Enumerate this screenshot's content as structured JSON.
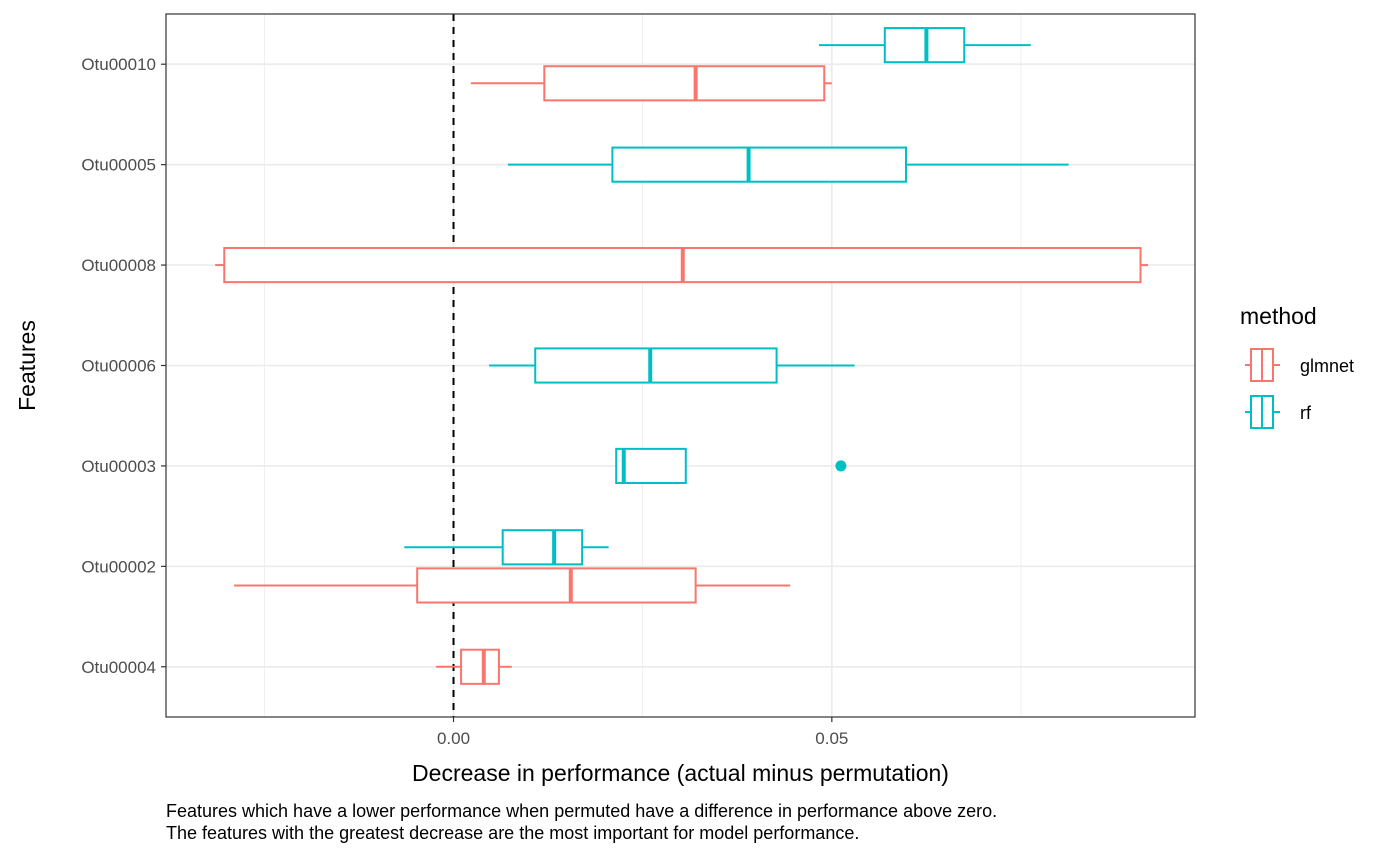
{
  "chart_data": {
    "type": "boxplot",
    "orientation": "horizontal",
    "xlabel": "Decrease in performance (actual minus permutation)",
    "ylabel": "Features",
    "xlim": [
      -0.038,
      0.098
    ],
    "x_ticks": [
      0.0,
      0.05
    ],
    "x_tick_labels": [
      "0.00",
      "0.05"
    ],
    "x_minor_grid": [
      -0.025,
      0.025,
      0.075
    ],
    "categories": [
      "Otu00004",
      "Otu00002",
      "Otu00003",
      "Otu00006",
      "Otu00008",
      "Otu00005",
      "Otu00010"
    ],
    "reference_line": {
      "x": 0.0,
      "style": "dashed"
    },
    "grid": true,
    "legend": {
      "title": "method",
      "position": "right"
    },
    "series": [
      {
        "name": "glmnet",
        "color": "#F8766D",
        "boxes": [
          {
            "category": "Otu00010",
            "whisker_low": 0.0023,
            "q1": 0.012,
            "median": 0.032,
            "q3": 0.049,
            "whisker_high": 0.05
          },
          {
            "category": "Otu00008",
            "whisker_low": -0.0315,
            "q1": -0.0303,
            "median": 0.0303,
            "q3": 0.0908,
            "whisker_high": 0.0918
          },
          {
            "category": "Otu00002",
            "whisker_low": -0.029,
            "q1": -0.0048,
            "median": 0.0155,
            "q3": 0.032,
            "whisker_high": 0.0445
          },
          {
            "category": "Otu00004",
            "whisker_low": -0.0023,
            "q1": 0.001,
            "median": 0.004,
            "q3": 0.006,
            "whisker_high": 0.0077
          }
        ],
        "outliers": []
      },
      {
        "name": "rf",
        "color": "#00BFC4",
        "boxes": [
          {
            "category": "Otu00010",
            "whisker_low": 0.0483,
            "q1": 0.057,
            "median": 0.0625,
            "q3": 0.0675,
            "whisker_high": 0.0763
          },
          {
            "category": "Otu00005",
            "whisker_low": 0.0072,
            "q1": 0.021,
            "median": 0.039,
            "q3": 0.0598,
            "whisker_high": 0.0813
          },
          {
            "category": "Otu00006",
            "whisker_low": 0.0047,
            "q1": 0.0108,
            "median": 0.026,
            "q3": 0.0427,
            "whisker_high": 0.053
          },
          {
            "category": "Otu00003",
            "whisker_low": 0.0215,
            "q1": 0.0215,
            "median": 0.0225,
            "q3": 0.0307,
            "whisker_high": 0.0307
          },
          {
            "category": "Otu00002",
            "whisker_low": -0.0065,
            "q1": 0.0065,
            "median": 0.0133,
            "q3": 0.017,
            "whisker_high": 0.0205
          }
        ],
        "outliers": [
          {
            "category": "Otu00003",
            "x": 0.0512
          }
        ]
      }
    ]
  },
  "caption": {
    "line1": "Features which have a lower performance when permuted have a difference in performance above zero.",
    "line2": "The features with the greatest decrease are the most important for model performance."
  }
}
